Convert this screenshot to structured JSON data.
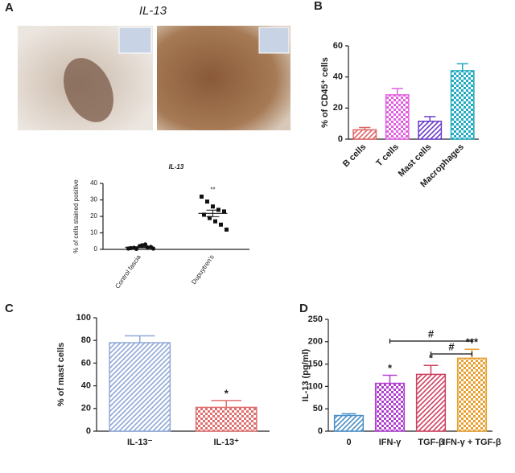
{
  "chart_data": [
    {
      "type": "dot",
      "panel": "A",
      "figure_title": "IL-13",
      "title": "IL-13",
      "categories": [
        "Control fascia",
        "Dupuytren's"
      ],
      "markers": [
        "circle",
        "square"
      ],
      "points": [
        [
          0.5,
          1,
          2,
          3,
          1.5,
          0.8,
          0.3,
          2.5,
          1.2,
          0.5
        ],
        [
          32,
          29,
          26,
          24,
          23,
          21,
          19,
          17,
          15,
          12
        ]
      ],
      "means": [
        1.3,
        21.8
      ],
      "sem": [
        0.3,
        2
      ],
      "annotations": [
        null,
        "**"
      ],
      "ylabel": "% of cells stained positive",
      "ylim": [
        0,
        40
      ],
      "yticks": [
        0,
        10,
        20,
        30,
        40
      ]
    },
    {
      "type": "bar",
      "panel": "B",
      "ylabel": "% of CD45⁺ cells",
      "categories": [
        "B cells",
        "T cells",
        "Mast cells",
        "Macrophages"
      ],
      "values": [
        6,
        28.5,
        11.5,
        44
      ],
      "errors": [
        1.5,
        4,
        3,
        4.5
      ],
      "colors": [
        "#e06464",
        "#e060e0",
        "#6a3cc8",
        "#22aabf"
      ],
      "patterns": [
        "diagonal",
        "checker",
        "diagonal",
        "checker"
      ],
      "ylim": [
        0,
        60
      ],
      "yticks": [
        0,
        20,
        40,
        60
      ]
    },
    {
      "type": "bar",
      "panel": "C",
      "ylabel": "% of mast cells",
      "categories": [
        "IL-13⁻",
        "IL-13⁺"
      ],
      "values": [
        78,
        21
      ],
      "errors": [
        6,
        6
      ],
      "colors": [
        "#8fa8d8",
        "#e07070"
      ],
      "patterns": [
        "diagonal",
        "checker"
      ],
      "annotations": [
        null,
        "*"
      ],
      "ylim": [
        0,
        100
      ],
      "yticks": [
        0,
        20,
        40,
        60,
        80,
        100
      ]
    },
    {
      "type": "bar",
      "panel": "D",
      "ylabel": "IL-13 (pg/ml)",
      "categories": [
        "0",
        "IFN-γ",
        "TGF-β",
        "IFN-γ + TGF-β"
      ],
      "values": [
        35,
        107,
        127,
        163
      ],
      "errors": [
        4,
        18,
        20,
        20
      ],
      "colors": [
        "#4a90c8",
        "#b040d0",
        "#d04060",
        "#e8a030"
      ],
      "patterns": [
        "diagonal",
        "checker",
        "diagonal",
        "checker"
      ],
      "annotations": [
        null,
        "*",
        "*",
        "***"
      ],
      "brackets": [
        "#",
        "#"
      ],
      "ylim": [
        0,
        250
      ],
      "yticks": [
        0,
        50,
        100,
        150,
        200,
        250
      ]
    }
  ]
}
